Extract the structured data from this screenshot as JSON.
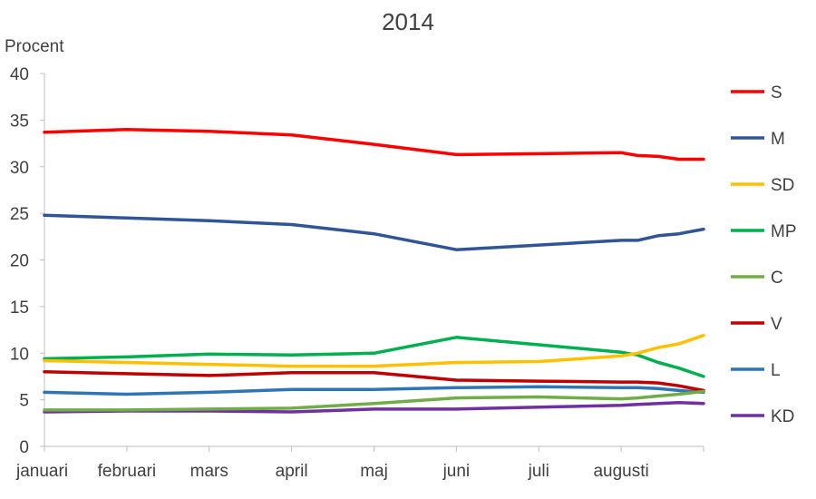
{
  "chart_data": {
    "type": "line",
    "title": "2014",
    "xlabel": "",
    "ylabel": "Procent",
    "ylim": [
      0,
      40
    ],
    "yticks": [
      0,
      5,
      10,
      15,
      20,
      25,
      30,
      35,
      40
    ],
    "month_labels": [
      "januari",
      "februari",
      "mars",
      "april",
      "maj",
      "juni",
      "juli",
      "augusti"
    ],
    "x_range": [
      0,
      8
    ],
    "x": [
      0,
      1,
      2,
      3,
      4,
      5,
      6,
      7,
      7.2,
      7.45,
      7.7,
      8
    ],
    "legend_position": "right",
    "series": [
      {
        "name": "S",
        "color": "#ff0000",
        "values": [
          33.7,
          34.0,
          33.8,
          33.4,
          32.4,
          31.3,
          31.4,
          31.5,
          31.2,
          31.1,
          30.8,
          30.8
        ]
      },
      {
        "name": "M",
        "color": "#2f5597",
        "values": [
          24.8,
          24.5,
          24.2,
          23.8,
          22.8,
          21.1,
          21.6,
          22.1,
          22.1,
          22.6,
          22.8,
          23.3
        ]
      },
      {
        "name": "SD",
        "color": "#ffc000",
        "values": [
          9.2,
          9.0,
          8.8,
          8.6,
          8.6,
          9.0,
          9.1,
          9.7,
          10.0,
          10.6,
          11.0,
          11.9
        ]
      },
      {
        "name": "MP",
        "color": "#00b050",
        "values": [
          9.4,
          9.6,
          9.9,
          9.8,
          10.0,
          11.7,
          10.9,
          10.1,
          9.8,
          9.0,
          8.4,
          7.5
        ]
      },
      {
        "name": "C",
        "color": "#70ad47",
        "values": [
          3.9,
          3.9,
          4.0,
          4.1,
          4.6,
          5.2,
          5.3,
          5.1,
          5.2,
          5.4,
          5.6,
          5.9
        ]
      },
      {
        "name": "V",
        "color": "#c00000",
        "values": [
          8.0,
          7.8,
          7.6,
          7.9,
          7.9,
          7.1,
          7.0,
          6.9,
          6.9,
          6.8,
          6.5,
          6.0
        ]
      },
      {
        "name": "L",
        "color": "#2e75b6",
        "values": [
          5.8,
          5.6,
          5.8,
          6.1,
          6.1,
          6.3,
          6.4,
          6.3,
          6.3,
          6.2,
          6.0,
          5.8
        ]
      },
      {
        "name": "KD",
        "color": "#7030a0",
        "values": [
          3.7,
          3.8,
          3.8,
          3.7,
          4.0,
          4.0,
          4.2,
          4.4,
          4.5,
          4.6,
          4.7,
          4.6
        ]
      }
    ]
  }
}
